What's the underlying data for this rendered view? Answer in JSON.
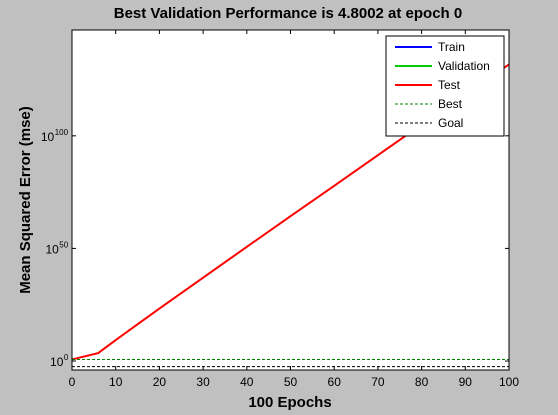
{
  "chart_data": {
    "type": "line",
    "title": "Best Validation Performance is 4.8002 at epoch 0",
    "xlabel": "100 Epochs",
    "ylabel": "Mean Squared Error  (mse)",
    "xlim": [
      0,
      100
    ],
    "ylim_log10": [
      -4,
      147
    ],
    "y_scale": "log",
    "x_ticks": [
      0,
      10,
      20,
      30,
      40,
      50,
      60,
      70,
      80,
      90,
      100
    ],
    "y_ticks": [
      {
        "base": "10",
        "exp": "0",
        "log10": 0
      },
      {
        "base": "10",
        "exp": "50",
        "log10": 50
      },
      {
        "base": "10",
        "exp": "100",
        "log10": 100
      }
    ],
    "grid": false,
    "legend_position": "top-right",
    "series": [
      {
        "name": "Train",
        "color": "#0000ff",
        "style": "solid",
        "x": [],
        "log10_y": []
      },
      {
        "name": "Validation",
        "color": "#00cc00",
        "style": "solid",
        "x": [],
        "log10_y": []
      },
      {
        "name": "Test",
        "color": "#ff0000",
        "style": "solid",
        "x": [
          0,
          6,
          10,
          20,
          30,
          40,
          50,
          60,
          70,
          80,
          90,
          100
        ],
        "log10_y": [
          0.7,
          3.5,
          9.3,
          23.3,
          37.0,
          50.7,
          64.3,
          77.8,
          91.4,
          105.0,
          118.3,
          131.7
        ]
      },
      {
        "name": "Best",
        "color": "#008000",
        "style": "dashed",
        "x": [
          0,
          100
        ],
        "log10_y": [
          0.68,
          0.68
        ]
      },
      {
        "name": "Goal",
        "color": "#000000",
        "style": "dashed",
        "x": [
          0,
          100
        ],
        "log10_y": [
          -2.5,
          -2.5
        ]
      }
    ]
  }
}
